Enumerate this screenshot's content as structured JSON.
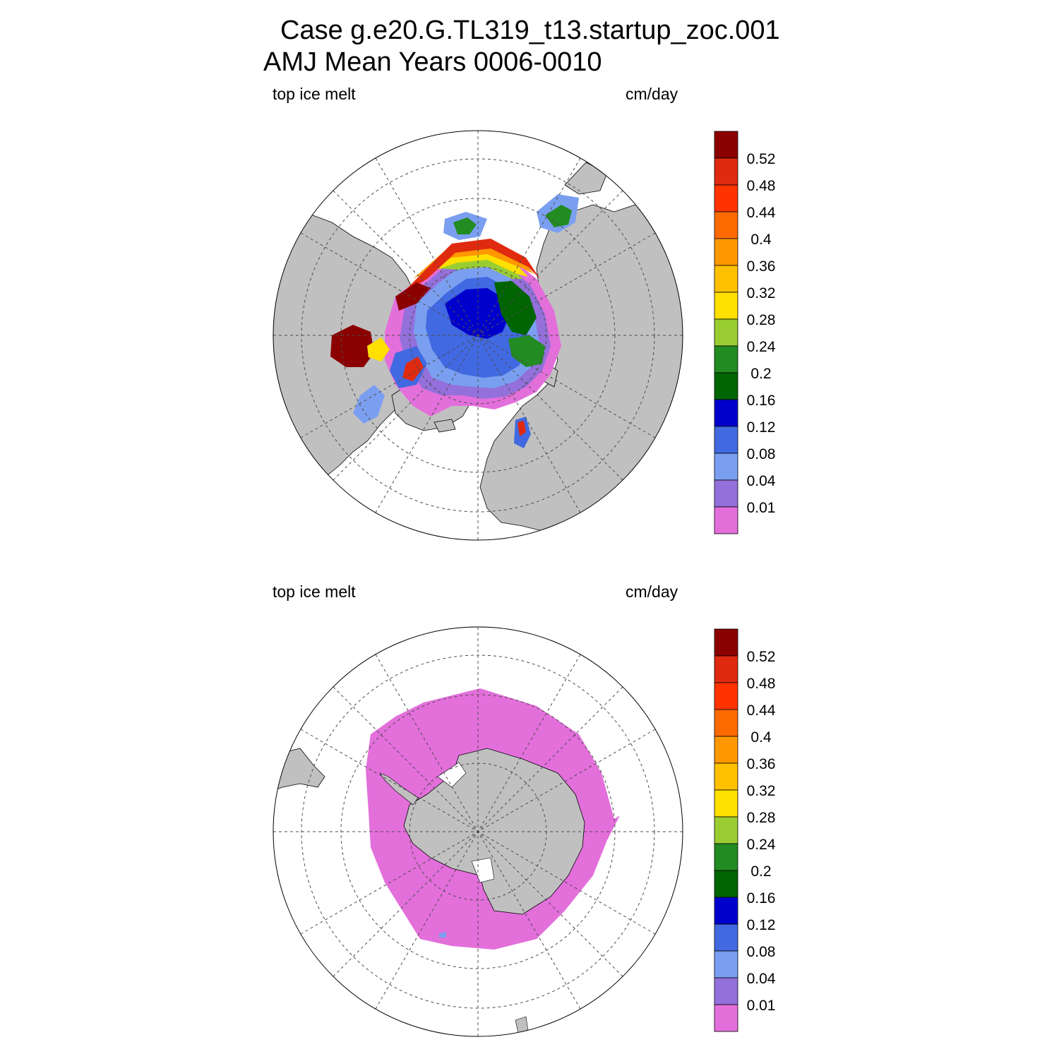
{
  "title": {
    "line1": "Case g.e20.G.TL319_t13.startup_zoc.001",
    "line2": "AMJ Mean   Years 0006-0010"
  },
  "colors": {
    "land": "#c0c0c0",
    "coast": "#000000",
    "grid": "#4d4d4d",
    "levels": [
      "#e36fdb",
      "#9370db",
      "#7b9ff0",
      "#4169e1",
      "#0000cd",
      "#006400",
      "#228b22",
      "#9acd32",
      "#ffe000",
      "#ffc000",
      "#ff9800",
      "#ff6a00",
      "#ff3300",
      "#e02a10",
      "#8b0000"
    ]
  },
  "panels": [
    {
      "hemisphere": "north",
      "variable": "top ice melt",
      "units": "cm/day",
      "colorbar_labels": [
        "0.52",
        "0.48",
        "0.44",
        "0.4",
        "0.36",
        "0.32",
        "0.28",
        "0.24",
        "0.2",
        "0.16",
        "0.12",
        "0.08",
        "0.04",
        "0.01"
      ]
    },
    {
      "hemisphere": "south",
      "variable": "top ice melt",
      "units": "cm/day",
      "colorbar_labels": [
        "0.52",
        "0.48",
        "0.44",
        "0.4",
        "0.36",
        "0.32",
        "0.28",
        "0.24",
        "0.2",
        "0.16",
        "0.12",
        "0.08",
        "0.04",
        "0.01"
      ]
    }
  ],
  "chart_data": {
    "type": "contour",
    "projection": "polar stereographic",
    "levels": [
      0.01,
      0.04,
      0.08,
      0.12,
      0.16,
      0.2,
      0.24,
      0.28,
      0.32,
      0.36,
      0.4,
      0.44,
      0.48,
      0.52
    ],
    "units": "cm/day",
    "variable": "top ice melt",
    "panels": [
      "north",
      "south"
    ],
    "grid": true
  }
}
